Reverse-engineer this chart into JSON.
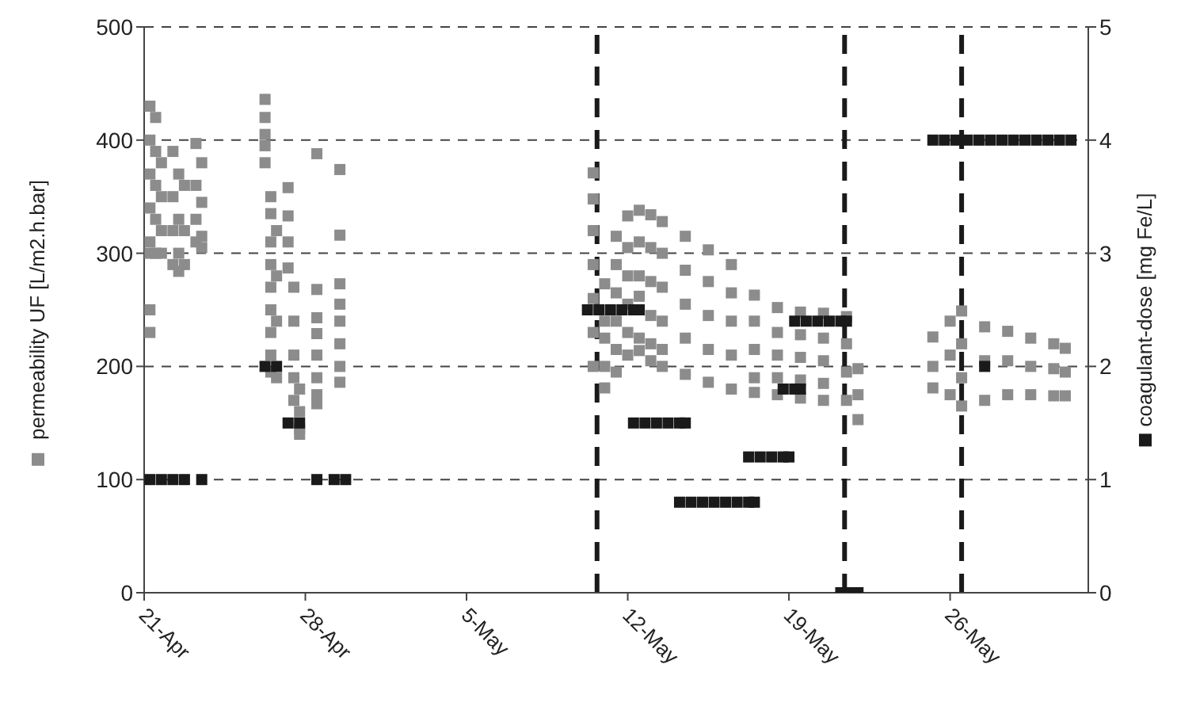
{
  "chart_data": {
    "type": "scatter",
    "ylabel": "permeability UF [L/m2.h.bar]",
    "y2label": "coagulant-dose [mg Fe/L]",
    "xlim": [
      "--04-21",
      "--06-01"
    ],
    "xticks": [
      {
        "value": "--04-21",
        "label": "21-Apr"
      },
      {
        "value": "--04-28",
        "label": "28-Apr"
      },
      {
        "value": "--05-05",
        "label": "5-May"
      },
      {
        "value": "--05-12",
        "label": "12-May"
      },
      {
        "value": "--05-19",
        "label": "19-May"
      },
      {
        "value": "--05-26",
        "label": "26-May"
      }
    ],
    "ylim": [
      0,
      500
    ],
    "yticks": [
      0,
      100,
      200,
      300,
      400,
      500
    ],
    "y2lim": [
      0,
      5
    ],
    "y2ticks": [
      0,
      1,
      2,
      3,
      4,
      5
    ],
    "grid": "y",
    "marker": "square",
    "ref_lines": [
      {
        "axis": "x",
        "value": "--05-10T16:00",
        "color": "#1a1a1a",
        "line_style": "dashed"
      },
      {
        "axis": "x",
        "value": "--05-21T10:00",
        "color": "#1a1a1a",
        "line_style": "dashed"
      },
      {
        "axis": "x",
        "value": "--05-26T12:00",
        "color": "#1a1a1a",
        "line_style": "dashed"
      }
    ],
    "series": [
      {
        "color": "#8c8c8c",
        "x": [
          "--04-21T06:00",
          "--04-21T06:00",
          "--04-21T06:00",
          "--04-21T06:00",
          "--04-21T06:00",
          "--04-21T06:00",
          "--04-21T06:00",
          "--04-21T06:00",
          "--04-21T12:00",
          "--04-21T12:00",
          "--04-21T12:00",
          "--04-21T12:00",
          "--04-21T12:00",
          "--04-21T18:00",
          "--04-21T18:00",
          "--04-21T18:00",
          "--04-21T18:00",
          "--04-22T06:00",
          "--04-22T06:00",
          "--04-22T06:00",
          "--04-22T06:00",
          "--04-22T12:00",
          "--04-22T12:00",
          "--04-22T12:00",
          "--04-22T12:00",
          "--04-22T18:00",
          "--04-22T18:00",
          "--04-22T18:00",
          "--04-23T06:00",
          "--04-23T06:00",
          "--04-23T06:00",
          "--04-23T06:00",
          "--04-23T12:00",
          "--04-23T12:00",
          "--04-23T12:00",
          "--04-23T12:00",
          "--04-26T06:00",
          "--04-26T06:00",
          "--04-26T06:00",
          "--04-26T06:00",
          "--04-26T06:00",
          "--04-26T12:00",
          "--04-26T12:00",
          "--04-26T12:00",
          "--04-26T12:00",
          "--04-26T12:00",
          "--04-26T12:00",
          "--04-26T12:00",
          "--04-26T12:00",
          "--04-26T12:00",
          "--04-26T18:00",
          "--04-26T18:00",
          "--04-26T18:00",
          "--04-26T18:00",
          "--04-27T06:00",
          "--04-27T06:00",
          "--04-27T06:00",
          "--04-27T06:00",
          "--04-27T12:00",
          "--04-27T12:00",
          "--04-27T12:00",
          "--04-27T12:00",
          "--04-27T12:00",
          "--04-27T18:00",
          "--04-27T18:00",
          "--04-27T18:00",
          "--04-27T18:00",
          "--04-28T12:00",
          "--04-28T12:00",
          "--04-28T12:00",
          "--04-28T12:00",
          "--04-28T12:00",
          "--04-28T12:00",
          "--04-28T12:00",
          "--04-28T12:00",
          "--04-29T12:00",
          "--04-29T12:00",
          "--04-29T12:00",
          "--04-29T12:00",
          "--04-29T12:00",
          "--04-29T12:00",
          "--04-29T12:00",
          "--04-29T12:00",
          "--05-10T12:00",
          "--05-10T12:00",
          "--05-10T12:00",
          "--05-10T12:00",
          "--05-10T12:00",
          "--05-10T12:00",
          "--05-10T12:00",
          "--05-11T00:00",
          "--05-11T00:00",
          "--05-11T00:00",
          "--05-11T00:00",
          "--05-11T00:00",
          "--05-11T12:00",
          "--05-11T12:00",
          "--05-11T12:00",
          "--05-11T12:00",
          "--05-11T12:00",
          "--05-11T12:00",
          "--05-12T00:00",
          "--05-12T00:00",
          "--05-12T00:00",
          "--05-12T00:00",
          "--05-12T00:00",
          "--05-12T00:00",
          "--05-12T12:00",
          "--05-12T12:00",
          "--05-12T12:00",
          "--05-12T12:00",
          "--05-12T12:00",
          "--05-12T12:00",
          "--05-13T00:00",
          "--05-13T00:00",
          "--05-13T00:00",
          "--05-13T00:00",
          "--05-13T00:00",
          "--05-13T00:00",
          "--05-13T12:00",
          "--05-13T12:00",
          "--05-13T12:00",
          "--05-13T12:00",
          "--05-13T12:00",
          "--05-13T12:00",
          "--05-14T12:00",
          "--05-14T12:00",
          "--05-14T12:00",
          "--05-14T12:00",
          "--05-14T12:00",
          "--05-15T12:00",
          "--05-15T12:00",
          "--05-15T12:00",
          "--05-15T12:00",
          "--05-15T12:00",
          "--05-16T12:00",
          "--05-16T12:00",
          "--05-16T12:00",
          "--05-16T12:00",
          "--05-16T12:00",
          "--05-17T12:00",
          "--05-17T12:00",
          "--05-17T12:00",
          "--05-17T12:00",
          "--05-17T12:00",
          "--05-18T12:00",
          "--05-18T12:00",
          "--05-18T12:00",
          "--05-18T12:00",
          "--05-18T12:00",
          "--05-19T12:00",
          "--05-19T12:00",
          "--05-19T12:00",
          "--05-19T12:00",
          "--05-19T12:00",
          "--05-20T12:00",
          "--05-20T12:00",
          "--05-20T12:00",
          "--05-20T12:00",
          "--05-20T12:00",
          "--05-21T12:00",
          "--05-21T12:00",
          "--05-21T12:00",
          "--05-21T12:00",
          "--05-22T00:00",
          "--05-22T00:00",
          "--05-22T00:00",
          "--05-25T06:00",
          "--05-25T06:00",
          "--05-25T06:00",
          "--05-26T00:00",
          "--05-26T00:00",
          "--05-26T00:00",
          "--05-26T12:00",
          "--05-26T12:00",
          "--05-26T12:00",
          "--05-26T12:00",
          "--05-27T12:00",
          "--05-27T12:00",
          "--05-27T12:00",
          "--05-28T12:00",
          "--05-28T12:00",
          "--05-28T12:00",
          "--05-29T12:00",
          "--05-29T12:00",
          "--05-29T12:00",
          "--05-30T12:00",
          "--05-30T12:00",
          "--05-30T12:00",
          "--05-31T00:00",
          "--05-31T00:00",
          "--05-31T00:00"
        ],
        "values": [
          430,
          400,
          370,
          340,
          310,
          300,
          250,
          230,
          420,
          390,
          360,
          330,
          300,
          380,
          350,
          320,
          300,
          390,
          350,
          320,
          290,
          370,
          330,
          300,
          284,
          360,
          320,
          290,
          397,
          360,
          330,
          310,
          380,
          345,
          315,
          305,
          436,
          420,
          405,
          395,
          380,
          350,
          335,
          310,
          290,
          270,
          250,
          230,
          210,
          195,
          320,
          280,
          240,
          190,
          358,
          333,
          310,
          287,
          270,
          240,
          210,
          190,
          170,
          180,
          160,
          145,
          140,
          388,
          268,
          243,
          229,
          210,
          190,
          175,
          167,
          374,
          316,
          273,
          255,
          240,
          220,
          200,
          186,
          371,
          348,
          320,
          290,
          260,
          230,
          200,
          273,
          240,
          225,
          200,
          181,
          315,
          290,
          265,
          240,
          215,
          195,
          333,
          305,
          280,
          255,
          230,
          210,
          338,
          310,
          280,
          262,
          225,
          214,
          334,
          305,
          275,
          245,
          220,
          205,
          328,
          300,
          270,
          240,
          215,
          200,
          315,
          285,
          255,
          225,
          193,
          303,
          275,
          245,
          215,
          186,
          290,
          265,
          240,
          210,
          180,
          263,
          240,
          215,
          190,
          177,
          252,
          230,
          210,
          190,
          175,
          248,
          228,
          208,
          188,
          172,
          247,
          225,
          205,
          185,
          170,
          244,
          220,
          195,
          170,
          198,
          175,
          153,
          226,
          200,
          181,
          240,
          210,
          175,
          249,
          220,
          190,
          165,
          235,
          205,
          170,
          231,
          205,
          175,
          225,
          200,
          175,
          220,
          198,
          174,
          216,
          195,
          174
        ]
      },
      {
        "color": "#1a1a1a",
        "axis": "y2",
        "x": [
          "--04-21T06:00",
          "--04-21T18:00",
          "--04-22T06:00",
          "--04-22T18:00",
          "--04-23T12:00",
          "--04-26T06:00",
          "--04-26T18:00",
          "--04-27T06:00",
          "--04-27T18:00",
          "--04-28T12:00",
          "--04-29T06:00",
          "--04-29T18:00",
          "--05-10T06:00",
          "--05-10T18:00",
          "--05-11T06:00",
          "--05-11T18:00",
          "--05-12T06:00",
          "--05-12T12:00",
          "--05-12T06:00",
          "--05-12T18:00",
          "--05-13T06:00",
          "--05-13T18:00",
          "--05-14T06:00",
          "--05-14T12:00",
          "--05-14T06:00",
          "--05-14T18:00",
          "--05-15T06:00",
          "--05-15T18:00",
          "--05-16T06:00",
          "--05-16T18:00",
          "--05-17T06:00",
          "--05-17T12:00",
          "--05-17T06:00",
          "--05-17T18:00",
          "--05-18T06:00",
          "--05-18T18:00",
          "--05-19T00:00",
          "--05-18T18:00",
          "--05-19T06:00",
          "--05-19T12:00",
          "--05-19T06:00",
          "--05-19T18:00",
          "--05-20T06:00",
          "--05-20T18:00",
          "--05-21T06:00",
          "--05-21T12:00",
          "--05-21T06:00",
          "--05-21T18:00",
          "--05-22T00:00",
          "--05-25T06:00",
          "--05-25T18:00",
          "--05-26T06:00",
          "--05-26T18:00",
          "--05-27T06:00",
          "--05-27T18:00",
          "--05-28T06:00",
          "--05-28T18:00",
          "--05-29T06:00",
          "--05-29T18:00",
          "--05-30T06:00",
          "--05-30T18:00",
          "--05-31T06:00",
          "--05-27T12:00"
        ],
        "values": [
          1,
          1,
          1,
          1,
          1,
          2,
          2,
          1.5,
          1.5,
          1,
          1,
          1,
          2.5,
          2.5,
          2.5,
          2.5,
          2.5,
          2.5,
          1.5,
          1.5,
          1.5,
          1.5,
          1.5,
          1.5,
          0.8,
          0.8,
          0.8,
          0.8,
          0.8,
          0.8,
          0.8,
          0.8,
          1.2,
          1.2,
          1.2,
          1.2,
          1.2,
          1.8,
          1.8,
          1.8,
          2.4,
          2.4,
          2.4,
          2.4,
          2.4,
          2.4,
          0,
          0,
          0,
          4,
          4,
          4,
          4,
          4,
          4,
          4,
          4,
          4,
          4,
          4,
          4,
          4,
          2
        ]
      }
    ]
  }
}
